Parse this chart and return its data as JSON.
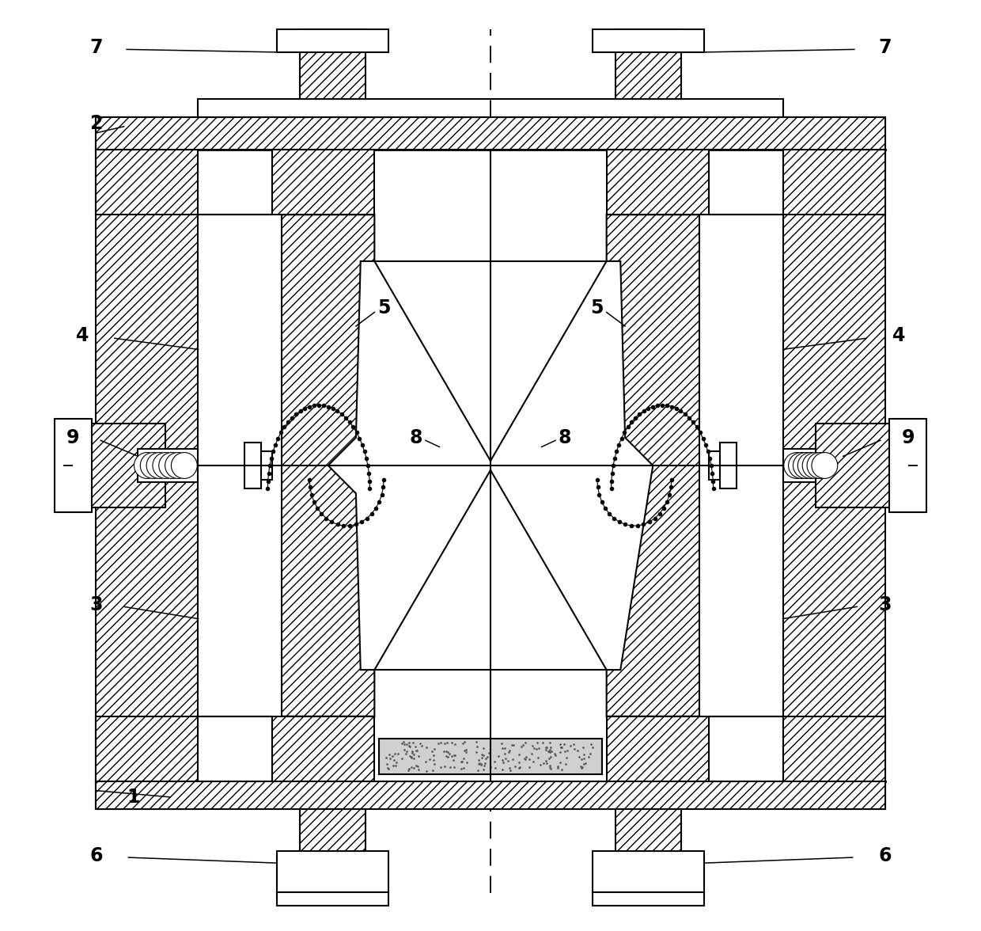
{
  "background_color": "#ffffff",
  "line_color": "#000000",
  "label_fontsize": 17,
  "lw": 1.5,
  "lw2": 2.0
}
